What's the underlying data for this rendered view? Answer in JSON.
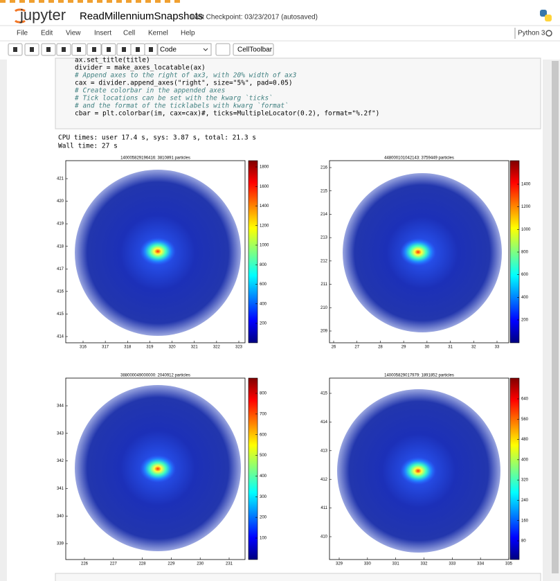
{
  "header": {
    "logo": "jupyter",
    "notebook_name": "ReadMillenniumSnapshots",
    "checkpoint": "Last Checkpoint: 03/23/2017 (autosaved)"
  },
  "menu": [
    "File",
    "Edit",
    "View",
    "Insert",
    "Cell",
    "Kernel",
    "Help"
  ],
  "kernel": "Python 3",
  "toolbar": {
    "cell_type": "Code",
    "cell_toolbar": "CellToolbar"
  },
  "cell": {
    "code": [
      "ax.set_title(title)",
      "divider = make_axes_locatable(ax)",
      "# Append axes to the right of ax3, with 20% width of ax3",
      "cax = divider.append_axes(\"right\", size=\"5%\", pad=0.05)",
      "# Create colorbar in the appended axes",
      "# Tick locations can be set with the kwarg `ticks`",
      "# and the format of the ticklabels with kwarg `format`",
      "cbar = plt.colorbar(im, cax=cax)#, ticks=MultipleLocator(0.2), format=\"%.2f\")"
    ],
    "output": [
      "CPU times: user 17.4 s, sys: 3.87 s, total: 21.3 s",
      "Wall time: 27 s"
    ]
  },
  "plots": [
    {
      "title": "140005829196416: 3810891 particles",
      "xticks": [
        316,
        317,
        318,
        319,
        320,
        321,
        322,
        323
      ],
      "yticks": [
        421,
        420,
        419,
        418,
        417,
        416,
        415,
        414
      ],
      "colorbar_ticks": [
        200,
        400,
        600,
        800,
        1000,
        1200,
        1400,
        1600,
        1800
      ]
    },
    {
      "title": "448000101042143: 3759449 particles",
      "xticks": [
        26,
        27,
        28,
        29,
        30,
        31,
        32,
        33
      ],
      "yticks": [
        216,
        215,
        214,
        213,
        212,
        211,
        210,
        209
      ],
      "colorbar_ticks": [
        200,
        400,
        600,
        800,
        1000,
        1200,
        1400
      ]
    },
    {
      "title": "388000049000000: 2040912 particles",
      "xticks": [
        226,
        227,
        228,
        229,
        230,
        231
      ],
      "yticks": [
        344,
        343,
        342,
        341,
        340,
        339
      ],
      "colorbar_ticks": [
        100,
        200,
        300,
        400,
        500,
        600,
        700,
        800
      ]
    },
    {
      "title": "140005829017979: 1891852 particles",
      "xticks": [
        329,
        330,
        331,
        332,
        333,
        334,
        335
      ],
      "yticks": [
        415,
        414,
        413,
        412,
        411,
        410
      ],
      "colorbar_ticks": [
        80,
        160,
        240,
        320,
        400,
        480,
        560,
        640
      ]
    }
  ]
}
